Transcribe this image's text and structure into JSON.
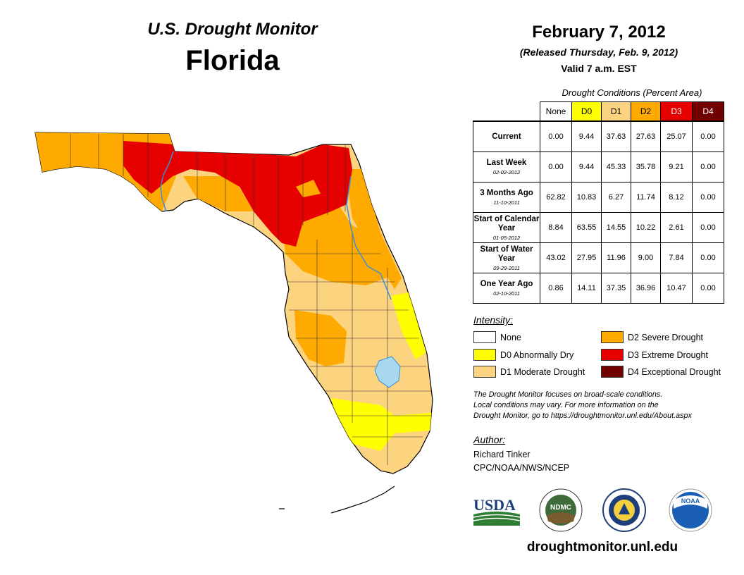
{
  "header": {
    "subtitle": "U.S. Drought Monitor",
    "title": "Florida",
    "date": "February 7, 2012",
    "released": "(Released Thursday, Feb. 9, 2012)",
    "valid": "Valid 7 a.m. EST"
  },
  "table": {
    "caption": "Drought Conditions (Percent Area)",
    "columns": [
      "None",
      "D0",
      "D1",
      "D2",
      "D3",
      "D4"
    ],
    "rows": [
      {
        "label": "Current",
        "sub": "",
        "values": [
          "0.00",
          "9.44",
          "37.63",
          "27.63",
          "25.07",
          "0.00"
        ]
      },
      {
        "label": "Last Week",
        "sub": "02-02-2012",
        "values": [
          "0.00",
          "9.44",
          "45.33",
          "35.78",
          "9.21",
          "0.00"
        ]
      },
      {
        "label": "3 Months Ago",
        "sub": "11-10-2011",
        "values": [
          "62.82",
          "10.83",
          "6.27",
          "11.74",
          "8.12",
          "0.00"
        ]
      },
      {
        "label": "Start of Calendar Year",
        "sub": "01-05-2012",
        "values": [
          "8.84",
          "63.55",
          "14.55",
          "10.22",
          "2.61",
          "0.00"
        ]
      },
      {
        "label": "Start of Water Year",
        "sub": "09-29-2011",
        "values": [
          "43.02",
          "27.95",
          "11.96",
          "9.00",
          "7.84",
          "0.00"
        ]
      },
      {
        "label": "One Year Ago",
        "sub": "02-10-2011",
        "values": [
          "0.86",
          "14.11",
          "37.35",
          "36.96",
          "10.47",
          "0.00"
        ]
      }
    ]
  },
  "legend": {
    "title": "Intensity:",
    "items": [
      {
        "label": "None",
        "color": "#ffffff"
      },
      {
        "label": "D0 Abnormally Dry",
        "color": "#ffff00"
      },
      {
        "label": "D1 Moderate Drought",
        "color": "#fcd37f"
      },
      {
        "label": "D2 Severe Drought",
        "color": "#ffaa00"
      },
      {
        "label": "D3 Extreme Drought",
        "color": "#e60000"
      },
      {
        "label": "D4 Exceptional Drought",
        "color": "#730000"
      }
    ]
  },
  "note": {
    "line1": "The Drought Monitor focuses on broad-scale conditions.",
    "line2": "Local conditions may vary. For more information on the",
    "line3": "Drought Monitor, go to https://droughtmonitor.unl.edu/About.aspx"
  },
  "author": {
    "title": "Author:",
    "name": "Richard Tinker",
    "org": "CPC/NOAA/NWS/NCEP"
  },
  "logos": {
    "usda": "USDA",
    "ndmc": "NDMC",
    "noaa": "NOAA"
  },
  "website": "droughtmonitor.unl.edu",
  "colors": {
    "none": "#ffffff",
    "d0": "#ffff00",
    "d1": "#fcd37f",
    "d2": "#ffaa00",
    "d3": "#e60000",
    "d4": "#730000",
    "water": "#a8d8f0",
    "river": "#3a8fd8"
  }
}
